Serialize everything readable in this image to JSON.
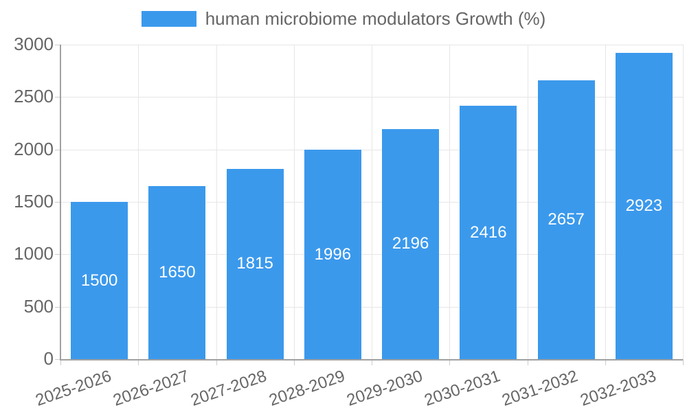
{
  "legend": {
    "label": "human microbiome modulators Growth (%)"
  },
  "colors": {
    "bar": "#3b99ec",
    "text": "#666666",
    "grid": "#e6e6e6",
    "tick": "#cccccc",
    "axis": "#a0a0a0",
    "bar_label": "#ffffff",
    "background": "#ffffff"
  },
  "chart_data": {
    "type": "bar",
    "title": "human microbiome modulators Growth (%)",
    "categories": [
      "2025-2026",
      "2026-2027",
      "2027-2028",
      "2028-2029",
      "2029-2030",
      "2030-2031",
      "2031-2032",
      "2032-2033"
    ],
    "values": [
      1500,
      1650,
      1815,
      1996,
      2196,
      2416,
      2657,
      2923
    ],
    "value_labels": [
      "1500",
      "1650",
      "1815",
      "1996",
      "2196",
      "2416",
      "2657",
      "2923"
    ],
    "xlabel": "",
    "ylabel": "",
    "ylim": [
      0,
      3000
    ],
    "yticks": [
      0,
      500,
      1000,
      1500,
      2000,
      2500,
      3000
    ],
    "grid": true,
    "legend_position": "top",
    "bar_value_labels_inside": true,
    "x_label_rotation_deg": -19
  }
}
